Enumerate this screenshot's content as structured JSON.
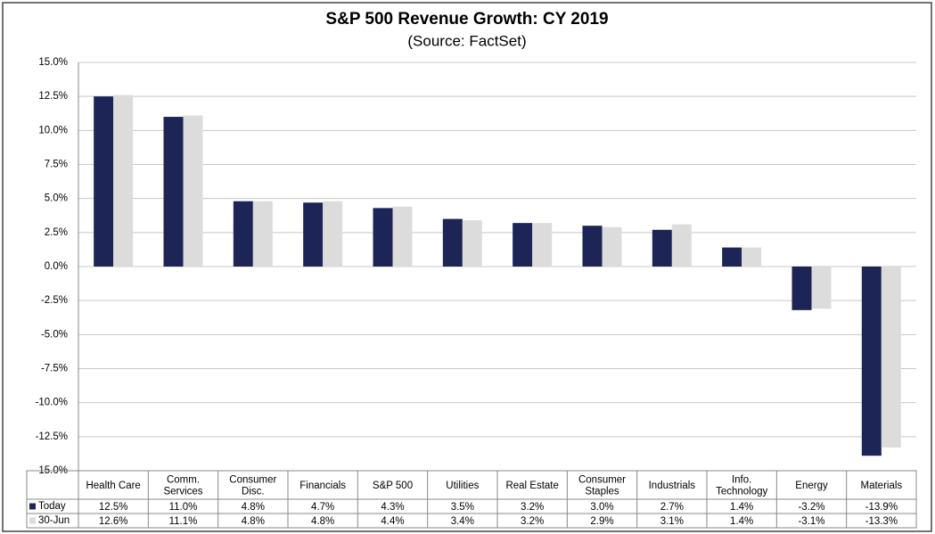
{
  "chart_data": {
    "type": "bar",
    "title": "S&P 500 Revenue Growth: CY 2019",
    "subtitle": "(Source: FactSet)",
    "categories": [
      "Health Care",
      "Comm.\nServices",
      "Consumer\nDisc.",
      "Financials",
      "S&P 500",
      "Utilities",
      "Real Estate",
      "Consumer\nStaples",
      "Industrials",
      "Info.\nTechnology",
      "Energy",
      "Materials"
    ],
    "series": [
      {
        "name": "Today",
        "color": "#1c2556",
        "values": [
          12.5,
          11.0,
          4.8,
          4.7,
          4.3,
          3.5,
          3.2,
          3.0,
          2.7,
          1.4,
          -3.2,
          -13.9
        ],
        "value_labels": [
          "12.5%",
          "11.0%",
          "4.8%",
          "4.7%",
          "4.3%",
          "3.5%",
          "3.2%",
          "3.0%",
          "2.7%",
          "1.4%",
          "-3.2%",
          "-13.9%"
        ]
      },
      {
        "name": "30-Jun",
        "color": "#dcdcdc",
        "values": [
          12.6,
          11.1,
          4.8,
          4.8,
          4.4,
          3.4,
          3.2,
          2.9,
          3.1,
          1.4,
          -3.1,
          -13.3
        ],
        "value_labels": [
          "12.6%",
          "11.1%",
          "4.8%",
          "4.8%",
          "4.4%",
          "3.4%",
          "3.2%",
          "2.9%",
          "3.1%",
          "1.4%",
          "-3.1%",
          "-13.3%"
        ]
      }
    ],
    "ylim": [
      -15,
      15
    ],
    "yticks": [
      {
        "value": -15,
        "label": "-15.0%"
      },
      {
        "value": -12.5,
        "label": "-12.5%"
      },
      {
        "value": -10,
        "label": "-10.0%"
      },
      {
        "value": -7.5,
        "label": "-7.5%"
      },
      {
        "value": -5,
        "label": "-5.0%"
      },
      {
        "value": -2.5,
        "label": "-2.5%"
      },
      {
        "value": 0,
        "label": "0.0%"
      },
      {
        "value": 2.5,
        "label": "2.5%"
      },
      {
        "value": 5,
        "label": "5.0%"
      },
      {
        "value": 7.5,
        "label": "7.5%"
      },
      {
        "value": 10,
        "label": "10.0%"
      },
      {
        "value": 12.5,
        "label": "12.5%"
      },
      {
        "value": 15,
        "label": "15.0%"
      }
    ],
    "grid": true
  }
}
